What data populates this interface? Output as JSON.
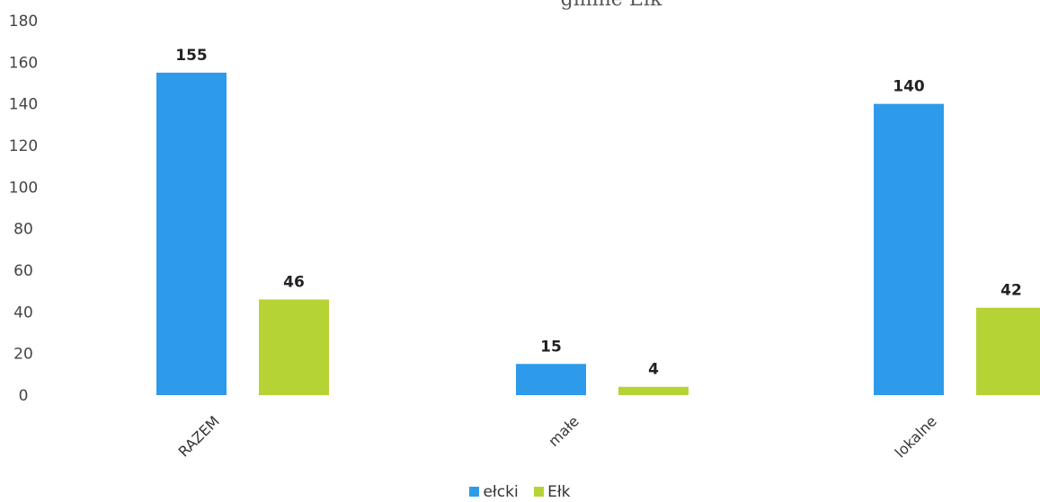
{
  "chart_data": {
    "type": "bar",
    "title": "gmine Ełk",
    "categories": [
      "RAZEM",
      "małe",
      "lokalne"
    ],
    "series": [
      {
        "name": "ełcki",
        "color": "#2E9BEA",
        "values": [
          155,
          15,
          140
        ]
      },
      {
        "name": "Ełk",
        "color": "#B5D334",
        "values": [
          46,
          4,
          42
        ]
      }
    ],
    "ylim": [
      0,
      180
    ],
    "yticks": [
      0,
      20,
      40,
      60,
      80,
      100,
      120,
      140,
      160,
      180
    ],
    "grid": false,
    "legend_position": "bottom"
  }
}
